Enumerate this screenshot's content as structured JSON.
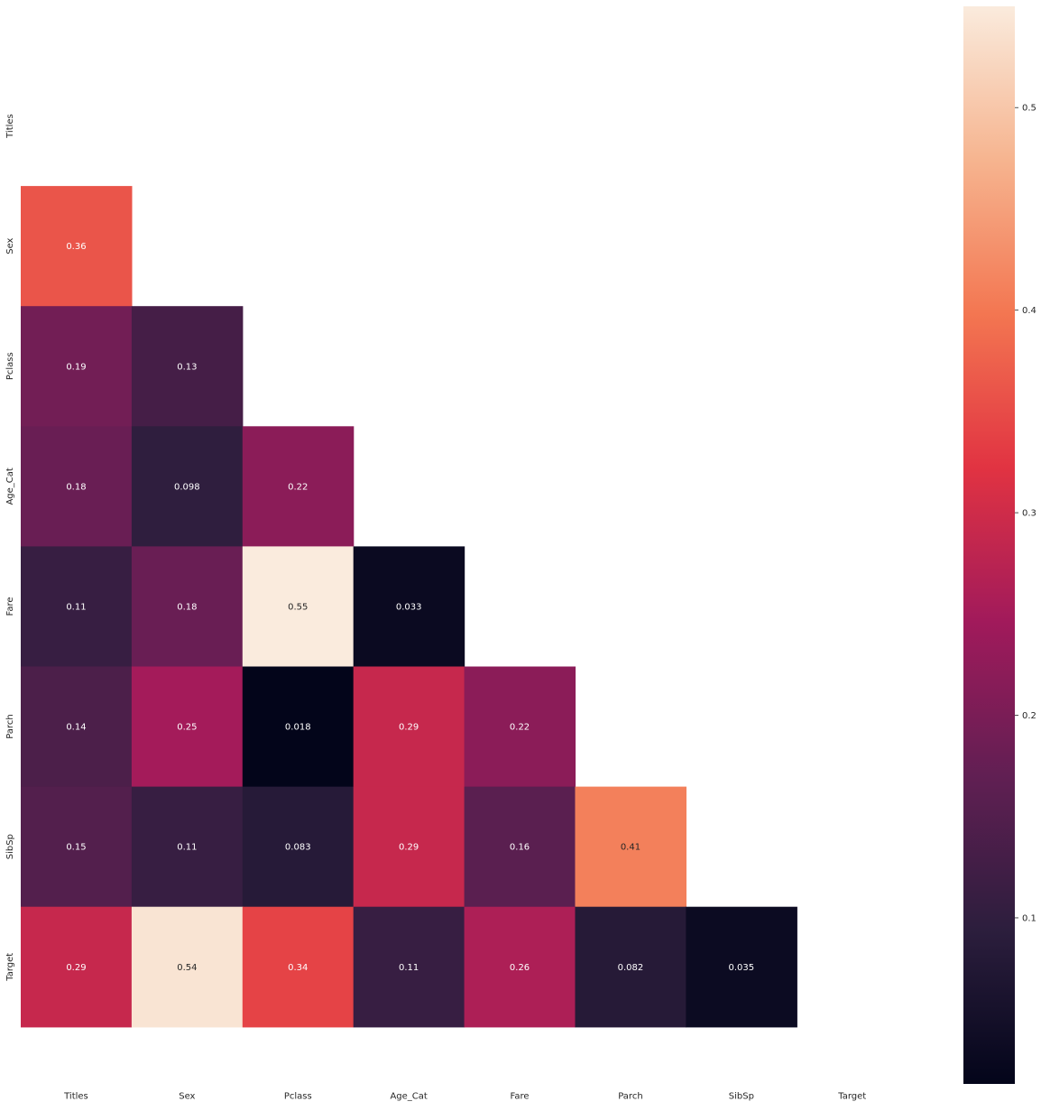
{
  "chart_data": {
    "type": "heatmap",
    "variables": [
      "Titles",
      "Sex",
      "Pclass",
      "Age_Cat",
      "Fare",
      "Parch",
      "SibSp",
      "Target"
    ],
    "mask": "upper-triangle-including-diagonal",
    "cells": [
      {
        "row": "Sex",
        "col": "Titles",
        "value": 0.36,
        "label": "0.36"
      },
      {
        "row": "Pclass",
        "col": "Titles",
        "value": 0.19,
        "label": "0.19"
      },
      {
        "row": "Pclass",
        "col": "Sex",
        "value": 0.13,
        "label": "0.13"
      },
      {
        "row": "Age_Cat",
        "col": "Titles",
        "value": 0.18,
        "label": "0.18"
      },
      {
        "row": "Age_Cat",
        "col": "Sex",
        "value": 0.098,
        "label": "0.098"
      },
      {
        "row": "Age_Cat",
        "col": "Pclass",
        "value": 0.22,
        "label": "0.22"
      },
      {
        "row": "Fare",
        "col": "Titles",
        "value": 0.11,
        "label": "0.11"
      },
      {
        "row": "Fare",
        "col": "Sex",
        "value": 0.18,
        "label": "0.18"
      },
      {
        "row": "Fare",
        "col": "Pclass",
        "value": 0.55,
        "label": "0.55"
      },
      {
        "row": "Fare",
        "col": "Age_Cat",
        "value": 0.033,
        "label": "0.033"
      },
      {
        "row": "Parch",
        "col": "Titles",
        "value": 0.14,
        "label": "0.14"
      },
      {
        "row": "Parch",
        "col": "Sex",
        "value": 0.25,
        "label": "0.25"
      },
      {
        "row": "Parch",
        "col": "Pclass",
        "value": 0.018,
        "label": "0.018"
      },
      {
        "row": "Parch",
        "col": "Age_Cat",
        "value": 0.29,
        "label": "0.29"
      },
      {
        "row": "Parch",
        "col": "Fare",
        "value": 0.22,
        "label": "0.22"
      },
      {
        "row": "SibSp",
        "col": "Titles",
        "value": 0.15,
        "label": "0.15"
      },
      {
        "row": "SibSp",
        "col": "Sex",
        "value": 0.11,
        "label": "0.11"
      },
      {
        "row": "SibSp",
        "col": "Pclass",
        "value": 0.083,
        "label": "0.083"
      },
      {
        "row": "SibSp",
        "col": "Age_Cat",
        "value": 0.29,
        "label": "0.29"
      },
      {
        "row": "SibSp",
        "col": "Fare",
        "value": 0.16,
        "label": "0.16"
      },
      {
        "row": "SibSp",
        "col": "Parch",
        "value": 0.41,
        "label": "0.41"
      },
      {
        "row": "Target",
        "col": "Titles",
        "value": 0.29,
        "label": "0.29"
      },
      {
        "row": "Target",
        "col": "Sex",
        "value": 0.54,
        "label": "0.54"
      },
      {
        "row": "Target",
        "col": "Pclass",
        "value": 0.34,
        "label": "0.34"
      },
      {
        "row": "Target",
        "col": "Age_Cat",
        "value": 0.11,
        "label": "0.11"
      },
      {
        "row": "Target",
        "col": "Fare",
        "value": 0.26,
        "label": "0.26"
      },
      {
        "row": "Target",
        "col": "Parch",
        "value": 0.082,
        "label": "0.082"
      },
      {
        "row": "Target",
        "col": "SibSp",
        "value": 0.035,
        "label": "0.035"
      }
    ],
    "colorbar": {
      "colormap": "rocket",
      "vmin": 0.018,
      "vmax": 0.55,
      "ticks": [
        0.1,
        0.2,
        0.3,
        0.4,
        0.5
      ],
      "tick_labels": [
        "0.1",
        "0.2",
        "0.3",
        "0.4",
        "0.5"
      ],
      "colors": [
        "#03051a",
        "#2c1e3d",
        "#611f53",
        "#a11a5b",
        "#e13342",
        "#f37651",
        "#f6b48f",
        "#faebdd"
      ]
    },
    "title": "",
    "xlabel": "",
    "ylabel": "",
    "grid": false,
    "legend": "colorbar-right"
  }
}
